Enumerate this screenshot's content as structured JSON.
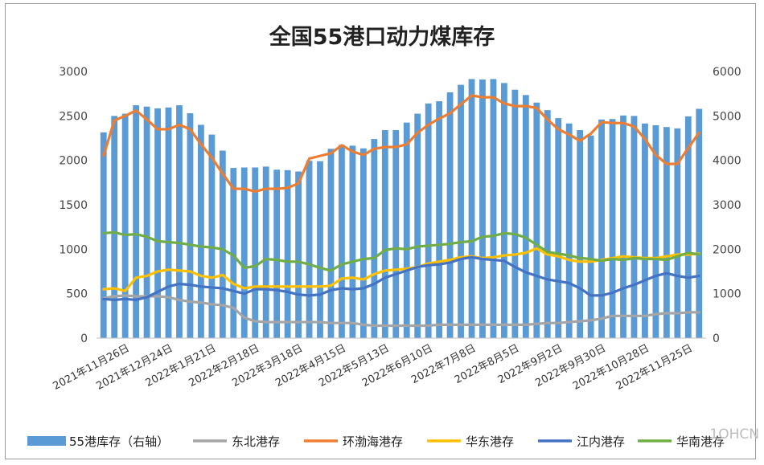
{
  "watermark": "1OHCN",
  "chart_data": {
    "type": "bar+line",
    "title": "全国55港口动力煤库存",
    "yleft": {
      "min": 0,
      "max": 3000,
      "ticks": [
        "0",
        "500",
        "1000",
        "1500",
        "2000",
        "2500",
        "3000"
      ]
    },
    "yright": {
      "min": 0,
      "max": 6000,
      "ticks": [
        "0",
        "1000",
        "2000",
        "3000",
        "4000",
        "5000",
        "6000"
      ]
    },
    "x_tick_labels": [
      "2021年11月26日",
      "2021年12月24日",
      "2022年1月21日",
      "2022年2月18日",
      "2022年3月18日",
      "2022年4月15日",
      "2022年5月13日",
      "2022年6月10日",
      "2022年7月8日",
      "2022年8月5日",
      "2022年9月2日",
      "2022年9月30日",
      "2022年10月28日",
      "2022年11月25日"
    ],
    "x_tick_positions": [
      2,
      6,
      10,
      14,
      18,
      22,
      26,
      30,
      34,
      38,
      42,
      46,
      50,
      54
    ],
    "bar_series": {
      "name": "55港库存（右轴）",
      "axis": "right",
      "color": "#5b9bd5",
      "values": [
        4630,
        5000,
        5050,
        5240,
        5210,
        5170,
        5190,
        5240,
        5060,
        4800,
        4580,
        4220,
        3830,
        3840,
        3840,
        3860,
        3790,
        3780,
        3750,
        3990,
        3980,
        4260,
        4350,
        4330,
        4270,
        4480,
        4680,
        4680,
        4850,
        5050,
        5280,
        5330,
        5530,
        5700,
        5830,
        5820,
        5830,
        5740,
        5590,
        5470,
        5300,
        5130,
        4950,
        4830,
        4680,
        4560,
        4920,
        4930,
        5010,
        5000,
        4830,
        4790,
        4750,
        4720,
        4990,
        5160
      ]
    },
    "line_series": [
      {
        "name": "东北港存",
        "color": "#a5a5a5",
        "values": [
          450,
          470,
          480,
          470,
          470,
          470,
          460,
          430,
          410,
          400,
          380,
          370,
          340,
          230,
          190,
          180,
          180,
          180,
          180,
          180,
          180,
          170,
          170,
          170,
          150,
          140,
          140,
          140,
          140,
          140,
          140,
          150,
          150,
          150,
          150,
          150,
          150,
          150,
          150,
          150,
          160,
          170,
          170,
          180,
          190,
          200,
          220,
          250,
          250,
          250,
          250,
          270,
          280,
          280,
          290,
          290
        ]
      },
      {
        "name": "环渤海港存",
        "color": "#ed7d31",
        "values": [
          2050,
          2450,
          2500,
          2560,
          2460,
          2350,
          2350,
          2400,
          2350,
          2180,
          2030,
          1850,
          1680,
          1680,
          1650,
          1680,
          1680,
          1690,
          1740,
          2020,
          2050,
          2080,
          2170,
          2100,
          2060,
          2130,
          2150,
          2150,
          2180,
          2310,
          2400,
          2470,
          2530,
          2630,
          2730,
          2710,
          2710,
          2640,
          2610,
          2610,
          2590,
          2460,
          2350,
          2290,
          2220,
          2300,
          2430,
          2420,
          2420,
          2380,
          2240,
          2060,
          1960,
          1960,
          2140,
          2310
        ]
      },
      {
        "name": "华东港存",
        "color": "#ffc000",
        "values": [
          550,
          560,
          530,
          680,
          700,
          750,
          770,
          760,
          750,
          700,
          680,
          710,
          610,
          560,
          580,
          580,
          580,
          580,
          580,
          580,
          580,
          590,
          670,
          680,
          660,
          720,
          760,
          770,
          780,
          800,
          840,
          860,
          880,
          910,
          920,
          900,
          910,
          930,
          940,
          960,
          1010,
          940,
          920,
          880,
          860,
          860,
          880,
          900,
          920,
          910,
          900,
          900,
          920,
          940,
          940,
          950
        ]
      },
      {
        "name": "江内港存",
        "color": "#4472c4",
        "values": [
          440,
          430,
          440,
          430,
          460,
          520,
          580,
          610,
          600,
          580,
          570,
          560,
          530,
          500,
          550,
          550,
          540,
          520,
          490,
          480,
          490,
          540,
          560,
          550,
          560,
          610,
          680,
          720,
          760,
          800,
          820,
          830,
          850,
          890,
          910,
          890,
          880,
          870,
          800,
          740,
          700,
          660,
          640,
          620,
          560,
          480,
          480,
          510,
          560,
          600,
          650,
          700,
          730,
          700,
          680,
          700
        ]
      },
      {
        "name": "华南港存",
        "color": "#70ad47",
        "values": [
          1180,
          1190,
          1160,
          1170,
          1140,
          1090,
          1080,
          1070,
          1050,
          1030,
          1020,
          1000,
          930,
          790,
          810,
          890,
          880,
          860,
          860,
          830,
          790,
          760,
          830,
          860,
          890,
          900,
          990,
          1010,
          1000,
          1030,
          1040,
          1050,
          1060,
          1080,
          1090,
          1140,
          1150,
          1180,
          1170,
          1130,
          1050,
          970,
          950,
          930,
          900,
          890,
          870,
          890,
          880,
          900,
          890,
          890,
          880,
          920,
          960,
          940
        ]
      }
    ],
    "legend_position": "bottom",
    "grid": false
  }
}
